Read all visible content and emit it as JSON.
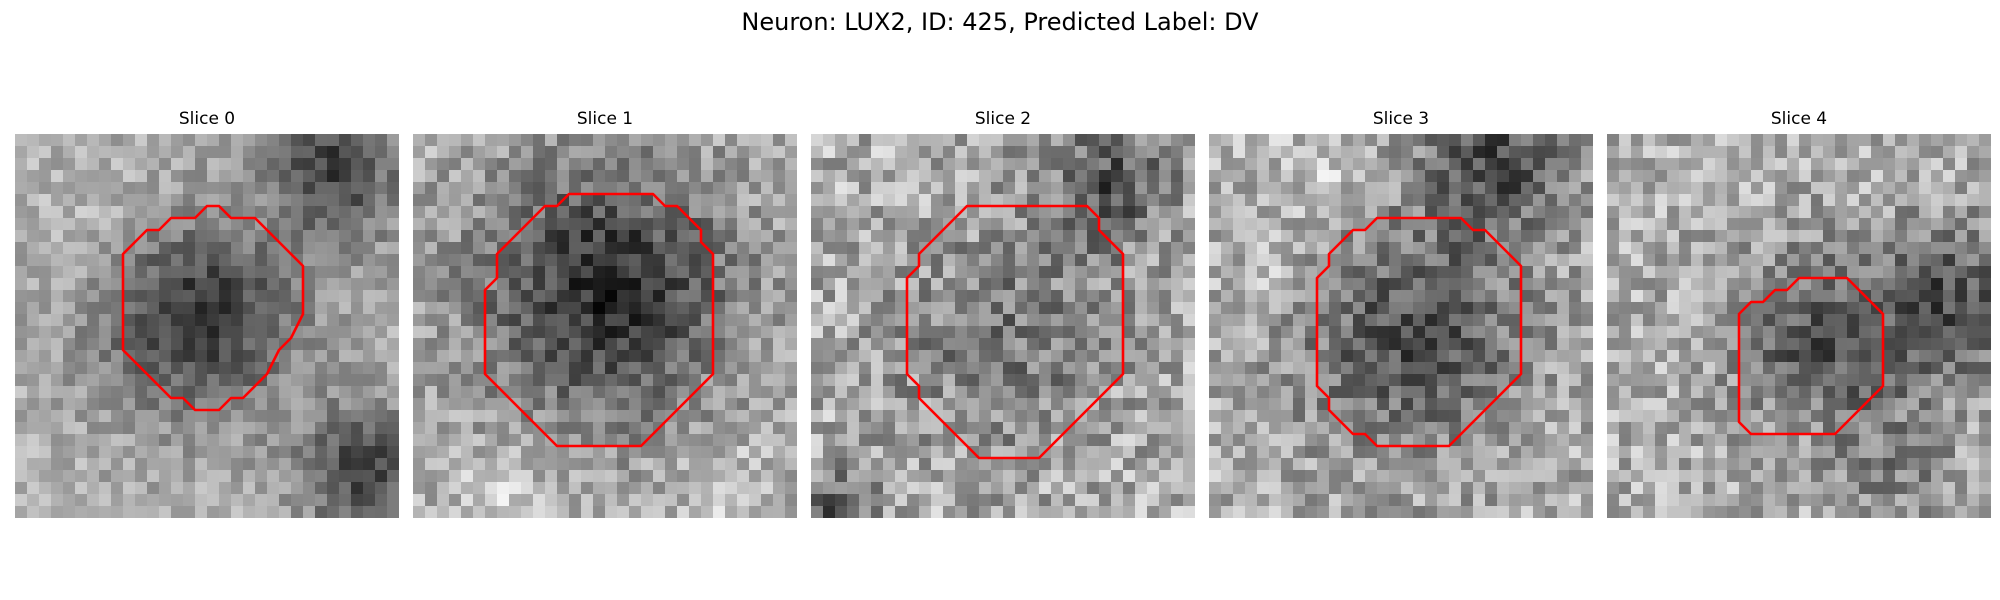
{
  "title": "Neuron: LUX2, ID: 425, Predicted Label: DV",
  "panels": [
    {
      "label": "Slice 0"
    },
    {
      "label": "Slice 1"
    },
    {
      "label": "Slice 2"
    },
    {
      "label": "Slice 3"
    },
    {
      "label": "Slice 4"
    }
  ],
  "colors": {
    "contour": "#ff0000",
    "image_colormap": "grayscale"
  }
}
